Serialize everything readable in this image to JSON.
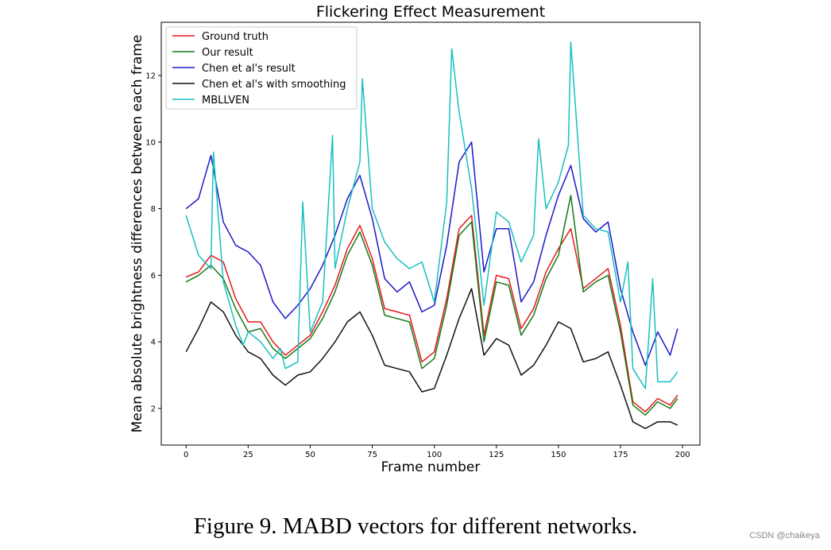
{
  "caption": "Figure 9. MABD vectors for different networks.",
  "watermark": "CSDN @chaikeya",
  "chart_data": {
    "type": "line",
    "title": "Flickering Effect Measurement",
    "xlabel": "Frame number",
    "ylabel": "Mean absolute brightness differences between each frame",
    "xlim": [
      -10,
      207
    ],
    "ylim": [
      0.9,
      13.6
    ],
    "xticks": [
      0,
      25,
      50,
      75,
      100,
      125,
      150,
      175,
      200
    ],
    "yticks": [
      2,
      4,
      6,
      8,
      10,
      12
    ],
    "legend_position": "top-left",
    "grid": false,
    "series": [
      {
        "name": "Ground truth",
        "color": "#e6191c",
        "x": [
          0,
          5,
          10,
          15,
          20,
          25,
          30,
          35,
          40,
          45,
          50,
          55,
          60,
          65,
          70,
          75,
          80,
          85,
          90,
          95,
          100,
          105,
          110,
          115,
          120,
          125,
          130,
          135,
          140,
          145,
          150,
          155,
          160,
          165,
          170,
          175,
          180,
          185,
          190,
          195,
          198
        ],
        "y": [
          5.95,
          6.1,
          6.6,
          6.4,
          5.3,
          4.6,
          4.6,
          4.0,
          3.6,
          3.9,
          4.2,
          4.9,
          5.7,
          6.8,
          7.5,
          6.5,
          5.0,
          4.9,
          4.8,
          3.4,
          3.7,
          5.3,
          7.4,
          7.8,
          4.2,
          6.0,
          5.9,
          4.4,
          5.0,
          6.1,
          6.8,
          7.4,
          5.6,
          5.9,
          6.2,
          4.5,
          2.2,
          1.9,
          2.3,
          2.1,
          2.4
        ]
      },
      {
        "name": "Our result",
        "color": "#157a15",
        "x": [
          0,
          5,
          10,
          15,
          20,
          25,
          30,
          35,
          40,
          45,
          50,
          55,
          60,
          65,
          70,
          75,
          80,
          85,
          90,
          95,
          100,
          105,
          110,
          115,
          120,
          125,
          130,
          135,
          140,
          145,
          150,
          155,
          160,
          165,
          170,
          175,
          180,
          185,
          190,
          195,
          198
        ],
        "y": [
          5.8,
          6.0,
          6.3,
          5.9,
          5.0,
          4.3,
          4.4,
          3.8,
          3.5,
          3.8,
          4.1,
          4.7,
          5.5,
          6.6,
          7.3,
          6.3,
          4.8,
          4.7,
          4.6,
          3.2,
          3.5,
          5.1,
          7.2,
          7.6,
          4.0,
          5.8,
          5.7,
          4.2,
          4.8,
          5.9,
          6.6,
          8.4,
          5.5,
          5.8,
          6.0,
          4.3,
          2.1,
          1.8,
          2.2,
          2.0,
          2.3
        ]
      },
      {
        "name": "Chen et al's result",
        "color": "#1c18c8",
        "x": [
          0,
          5,
          10,
          15,
          20,
          25,
          30,
          35,
          40,
          45,
          50,
          55,
          60,
          65,
          70,
          75,
          80,
          85,
          90,
          95,
          100,
          105,
          110,
          115,
          120,
          125,
          130,
          135,
          140,
          145,
          150,
          155,
          160,
          165,
          170,
          175,
          180,
          185,
          190,
          195,
          198
        ],
        "y": [
          8.0,
          8.3,
          9.6,
          7.6,
          6.9,
          6.7,
          6.3,
          5.2,
          4.7,
          5.1,
          5.6,
          6.3,
          7.2,
          8.3,
          9.0,
          7.7,
          5.9,
          5.5,
          5.8,
          4.9,
          5.1,
          6.9,
          9.4,
          10.0,
          6.1,
          7.4,
          7.4,
          5.2,
          5.8,
          7.2,
          8.4,
          9.3,
          7.7,
          7.3,
          7.6,
          5.6,
          4.3,
          3.3,
          4.3,
          3.6,
          4.4
        ]
      },
      {
        "name": "Chen et al's with smoothing",
        "color": "#111111",
        "x": [
          0,
          5,
          10,
          15,
          20,
          25,
          30,
          35,
          40,
          45,
          50,
          55,
          60,
          65,
          70,
          75,
          80,
          85,
          90,
          95,
          100,
          105,
          110,
          115,
          120,
          125,
          130,
          135,
          140,
          145,
          150,
          155,
          160,
          165,
          170,
          175,
          180,
          185,
          190,
          195,
          198
        ],
        "y": [
          3.7,
          4.4,
          5.2,
          4.9,
          4.2,
          3.7,
          3.5,
          3.0,
          2.7,
          3.0,
          3.1,
          3.5,
          4.0,
          4.6,
          4.9,
          4.2,
          3.3,
          3.2,
          3.1,
          2.5,
          2.6,
          3.6,
          4.7,
          5.6,
          3.6,
          4.1,
          3.9,
          3.0,
          3.3,
          3.9,
          4.6,
          4.4,
          3.4,
          3.5,
          3.7,
          2.7,
          1.6,
          1.4,
          1.6,
          1.6,
          1.5
        ]
      },
      {
        "name": "MBLLVEN",
        "color": "#19bfbf",
        "x": [
          0,
          5,
          10,
          11,
          15,
          20,
          23,
          25,
          30,
          35,
          38,
          40,
          45,
          47,
          50,
          55,
          59,
          60,
          65,
          70,
          71,
          75,
          80,
          85,
          90,
          95,
          100,
          105,
          107,
          110,
          115,
          120,
          125,
          130,
          135,
          140,
          142,
          145,
          150,
          154,
          155,
          160,
          165,
          170,
          175,
          178,
          180,
          185,
          188,
          190,
          195,
          198
        ],
        "y": [
          7.8,
          6.6,
          6.2,
          9.7,
          5.8,
          4.5,
          3.9,
          4.3,
          4.0,
          3.5,
          3.8,
          3.2,
          3.4,
          8.2,
          4.3,
          5.2,
          10.2,
          6.2,
          8.0,
          9.4,
          11.9,
          8.0,
          7.0,
          6.5,
          6.2,
          6.4,
          5.2,
          8.2,
          12.8,
          10.9,
          8.6,
          5.1,
          7.9,
          7.6,
          6.4,
          7.2,
          10.1,
          8.0,
          8.8,
          9.9,
          13.0,
          7.8,
          7.4,
          7.3,
          5.2,
          6.4,
          3.2,
          2.6,
          5.9,
          2.8,
          2.8,
          3.1
        ]
      }
    ]
  }
}
